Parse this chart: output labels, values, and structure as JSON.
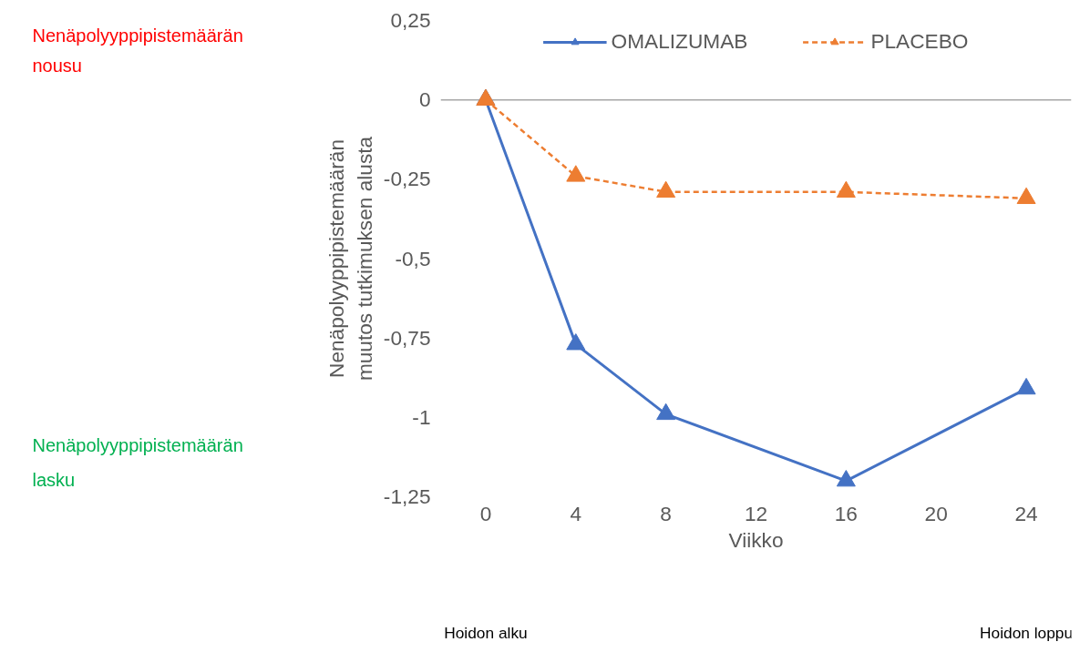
{
  "chart_data": {
    "type": "line",
    "ylabel": "Nenäpolyyppipistemäärän muutos tutkimuksen alusta",
    "xlabel": "Viikko",
    "x": [
      0,
      4,
      8,
      16,
      24
    ],
    "series": [
      {
        "name": "OMALIZUMAB",
        "color": "#4472c4",
        "line_style": "solid",
        "values": [
          0,
          -0.77,
          -0.99,
          -1.2,
          -0.91
        ]
      },
      {
        "name": "PLACEBO",
        "color": "#ed7d31",
        "line_style": "dashed",
        "values": [
          0,
          -0.24,
          -0.29,
          -0.29,
          -0.31
        ]
      }
    ],
    "xlim": [
      -2,
      26
    ],
    "xticks": [
      0,
      4,
      8,
      12,
      16,
      20,
      24
    ],
    "ylim": [
      -1.25,
      0.25
    ],
    "yticks": [
      {
        "value": -1.25,
        "label": "-1,25"
      },
      {
        "value": -1,
        "label": "-1"
      },
      {
        "value": -0.75,
        "label": "-0,75"
      },
      {
        "value": -0.5,
        "label": "-0,5"
      },
      {
        "value": -0.25,
        "label": "-0,25"
      },
      {
        "value": 0,
        "label": "0"
      },
      {
        "value": 0.25,
        "label": "0,25"
      }
    ],
    "ref_lines": [
      {
        "axis": "y",
        "value": 0,
        "color": "#a6a6a6"
      }
    ],
    "marker": "triangle",
    "grid": false,
    "legend": "top",
    "annotations": [
      "Hoidon alku",
      "Hoidon loppu",
      "Nenäpolyyppipistemäärän nousu",
      "Nenäpolyyppipistemäärän lasku"
    ]
  }
}
